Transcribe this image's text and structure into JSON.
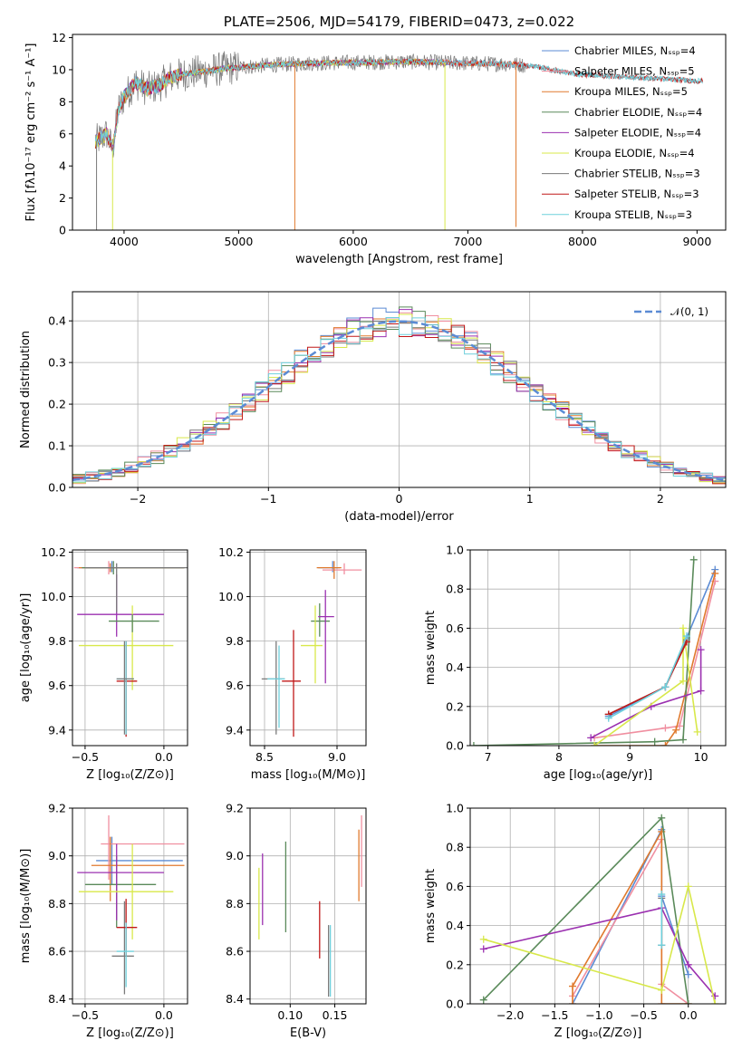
{
  "colors": {
    "Chabrier MILES": "#5b8bd4",
    "Salpeter MILES": "#f08fa0",
    "Kroupa MILES": "#e07a2e",
    "Chabrier ELODIE": "#5a8a5a",
    "Salpeter ELODIE": "#9b30b0",
    "Kroupa ELODIE": "#d8e84a",
    "Chabrier STELIB": "#7a7a7a",
    "Salpeter STELIB": "#c01818",
    "Kroupa STELIB": "#6fd0dc"
  },
  "chart_data": [
    {
      "id": "spectrum",
      "type": "line",
      "title": "PLATE=2506, MJD=54179, FIBERID=0473, z=0.022",
      "xlabel": "wavelength [Angstrom, rest frame]",
      "ylabel": "Flux [fλ10⁻¹⁷ erg cm⁻² s⁻¹ A⁻¹]",
      "xlim": [
        3550,
        9250
      ],
      "ylim": [
        0,
        12.2
      ],
      "xticks": [
        4000,
        5000,
        6000,
        7000,
        8000,
        9000
      ],
      "yticks": [
        0,
        2,
        4,
        6,
        8,
        10,
        12
      ],
      "grid": false,
      "legend_position": "top-right",
      "legend": [
        "Chabrier MILES, N_SSP=4",
        "Salpeter MILES, N_SSP=5",
        "Kroupa MILES, N_SSP=5",
        "Chabrier ELODIE, N_SSP=4",
        "Salpeter ELODIE, N_SSP=4",
        "Kroupa ELODIE, N_SSP=4",
        "Chabrier STELIB, N_SSP=3",
        "Salpeter STELIB, N_SSP=3",
        "Kroupa STELIB, N_SSP=3"
      ],
      "continuum": {
        "x": [
          3750,
          3850,
          3900,
          3950,
          4000,
          4100,
          4200,
          4300,
          4400,
          4500,
          4700,
          4900,
          5100,
          5300,
          5600,
          6000,
          6500,
          7000,
          7400,
          7600,
          7800,
          8000,
          8500,
          9000
        ],
        "y": [
          5.5,
          6.0,
          5.0,
          7.5,
          8.3,
          9.2,
          8.8,
          9.0,
          9.5,
          9.7,
          9.9,
          10.1,
          10.2,
          10.3,
          10.4,
          10.45,
          10.5,
          10.4,
          10.35,
          10.2,
          9.9,
          9.7,
          9.5,
          9.3
        ]
      },
      "spikes": [
        {
          "x": 5490,
          "y": 0,
          "series": "Kroupa MILES"
        },
        {
          "x": 6800,
          "y": 0,
          "series": "Kroupa ELODIE"
        },
        {
          "x": 7420,
          "y": 0.2,
          "series": "Kroupa MILES"
        },
        {
          "x": 3900,
          "y": 0,
          "series": "Kroupa ELODIE"
        },
        {
          "x": 3760,
          "y": 0,
          "series": "Chabrier STELIB"
        }
      ]
    },
    {
      "id": "residuals",
      "type": "line",
      "xlabel": "(data-model)/error",
      "ylabel": "Normed distribution",
      "xlim": [
        -2.5,
        2.5
      ],
      "ylim": [
        0,
        0.47
      ],
      "xticks": [
        -2,
        -1,
        0,
        1,
        2
      ],
      "xticklabels": [
        "−2",
        "−1",
        "0",
        "1",
        "2"
      ],
      "yticks": [
        0.0,
        0.1,
        0.2,
        0.3,
        0.4
      ],
      "yticklabels": [
        "0.0",
        "0.1",
        "0.2",
        "0.3",
        "0.4"
      ],
      "grid": true,
      "legend_position": "top-right",
      "legend": [
        "𝒩(0, 1)"
      ],
      "gaussian": {
        "mean": 0,
        "sigma": 1,
        "color": "#5b8bd4"
      },
      "bin_width": 0.1
    },
    {
      "id": "age-vs-Z",
      "type": "scatter",
      "xlabel": "Z [log₁₀(Z/Z⊙)]",
      "ylabel": "age  [log₁₀(age/yr)]",
      "xlim": [
        -0.58,
        0.15
      ],
      "ylim": [
        9.33,
        10.21
      ],
      "xticks": [
        -0.5,
        0.0
      ],
      "xticklabels": [
        "−0.5",
        "0.0"
      ],
      "yticks": [
        9.4,
        9.6,
        9.8,
        10.0,
        10.2
      ],
      "yticklabels": [
        "9.4",
        "9.6",
        "9.8",
        "10.0",
        "10.2"
      ],
      "grid": true,
      "points": [
        {
          "series": "Chabrier MILES",
          "x": -0.33,
          "y": 10.13,
          "xerr": [
            0.22,
            0.45
          ],
          "yerr": [
            0.02,
            0.03
          ]
        },
        {
          "series": "Salpeter MILES",
          "x": -0.35,
          "y": 10.13,
          "xerr": [
            0.22,
            0.48
          ],
          "yerr": [
            0.03,
            0.03
          ]
        },
        {
          "series": "Kroupa MILES",
          "x": -0.34,
          "y": 10.13,
          "xerr": [
            0.2,
            0.47
          ],
          "yerr": [
            0.02,
            0.02
          ]
        },
        {
          "series": "Chabrier ELODIE",
          "x": -0.32,
          "y": 10.13,
          "xerr": [
            0.2,
            0.45
          ],
          "yerr": [
            0.03,
            0.03
          ]
        },
        {
          "series": "Salpeter ELODIE",
          "x": -0.3,
          "y": 9.92,
          "xerr": [
            0.25,
            0.3
          ],
          "yerr": [
            0.1,
            0.18
          ]
        },
        {
          "series": "Kroupa ELODIE",
          "x": -0.2,
          "y": 9.78,
          "xerr": [
            0.34,
            0.26
          ],
          "yerr": [
            0.2,
            0.18
          ]
        },
        {
          "series": "Chabrier STELIB",
          "x": -0.3,
          "y": 10.13,
          "xerr": [
            0.2,
            0.45
          ],
          "yerr": [
            0.2,
            0.02
          ]
        },
        {
          "series": "Salpeter STELIB",
          "x": -0.24,
          "y": 9.62,
          "xerr": [
            0.06,
            0.07
          ],
          "yerr": [
            0.25,
            0.18
          ]
        },
        {
          "series": "Kroupa STELIB",
          "x": -0.24,
          "y": 9.63,
          "xerr": [
            0.06,
            0.05
          ],
          "yerr": [
            0.25,
            0.17
          ]
        },
        {
          "series": "Chabrier ELODIE",
          "x": -0.2,
          "y": 9.89,
          "xerr": [
            0.15,
            0.17
          ],
          "yerr": [
            0.05,
            0.03
          ]
        },
        {
          "series": "Chabrier STELIB",
          "x": -0.25,
          "y": 9.63,
          "xerr": [
            0.05,
            0.06
          ],
          "yerr": [
            0.25,
            0.17
          ]
        }
      ]
    },
    {
      "id": "age-vs-mass",
      "type": "scatter",
      "xlabel": "mass [log₁₀(M/M⊙)]",
      "ylabel": "",
      "xlim": [
        8.4,
        9.2
      ],
      "ylim": [
        9.33,
        10.21
      ],
      "xticks": [
        8.5,
        9.0
      ],
      "xticklabels": [
        "8.5",
        "9.0"
      ],
      "yticks": [
        9.4,
        9.6,
        9.8,
        10.0,
        10.2
      ],
      "yticklabels": [
        "9.4",
        "9.6",
        "9.8",
        "10.0",
        "10.2"
      ],
      "grid": true,
      "points": [
        {
          "series": "Chabrier MILES",
          "x": 8.97,
          "y": 10.13,
          "xerr": [
            0.1,
            0.05
          ],
          "yerr": [
            0.02,
            0.03
          ]
        },
        {
          "series": "Salpeter MILES",
          "x": 9.05,
          "y": 10.12,
          "xerr": [
            0.15,
            0.12
          ],
          "yerr": [
            0.02,
            0.03
          ]
        },
        {
          "series": "Kroupa MILES",
          "x": 8.98,
          "y": 10.13,
          "xerr": [
            0.12,
            0.05
          ],
          "yerr": [
            0.05,
            0.03
          ]
        },
        {
          "series": "Chabrier ELODIE",
          "x": 8.88,
          "y": 9.89,
          "xerr": [
            0.06,
            0.07
          ],
          "yerr": [
            0.07,
            0.08
          ]
        },
        {
          "series": "Salpeter ELODIE",
          "x": 8.92,
          "y": 9.91,
          "xerr": [
            0.05,
            0.06
          ],
          "yerr": [
            0.3,
            0.12
          ]
        },
        {
          "series": "Kroupa ELODIE",
          "x": 8.85,
          "y": 9.78,
          "xerr": [
            0.1,
            0.05
          ],
          "yerr": [
            0.17,
            0.18
          ]
        },
        {
          "series": "Chabrier STELIB",
          "x": 8.58,
          "y": 9.63,
          "xerr": [
            0.1,
            0.06
          ],
          "yerr": [
            0.25,
            0.17
          ]
        },
        {
          "series": "Salpeter STELIB",
          "x": 8.7,
          "y": 9.62,
          "xerr": [
            0.08,
            0.05
          ],
          "yerr": [
            0.25,
            0.23
          ]
        },
        {
          "series": "Kroupa STELIB",
          "x": 8.6,
          "y": 9.63,
          "xerr": [
            0.08,
            0.04
          ],
          "yerr": [
            0.22,
            0.15
          ]
        }
      ]
    },
    {
      "id": "weight-vs-age",
      "type": "line",
      "xlabel": "age  [log₁₀(age/yr)]",
      "ylabel": "mass weight",
      "xlim": [
        6.75,
        10.35
      ],
      "ylim": [
        0,
        1.0
      ],
      "xticks": [
        7,
        8,
        9,
        10
      ],
      "xticklabels": [
        "7",
        "8",
        "9",
        "10"
      ],
      "yticks": [
        0.0,
        0.2,
        0.4,
        0.6,
        0.8,
        1.0
      ],
      "yticklabels": [
        "0.0",
        "0.2",
        "0.4",
        "0.6",
        "0.8",
        "1.0"
      ],
      "grid": true,
      "series": [
        {
          "name": "Chabrier MILES",
          "x": [
            8.7,
            9.5,
            9.8,
            10.2
          ],
          "y": [
            0.15,
            0.3,
            0.55,
            0.9
          ]
        },
        {
          "name": "Salpeter MILES",
          "x": [
            8.5,
            9.5,
            9.7,
            10.2
          ],
          "y": [
            0.04,
            0.09,
            0.1,
            0.84
          ]
        },
        {
          "name": "Kroupa MILES",
          "x": [
            8.5,
            9.5,
            9.65,
            10.2
          ],
          "y": [
            0.0,
            0.0,
            0.08,
            0.88
          ]
        },
        {
          "name": "Chabrier ELODIE",
          "x": [
            6.8,
            9.35,
            9.75,
            9.9
          ],
          "y": [
            0.0,
            0.02,
            0.03,
            0.95
          ]
        },
        {
          "name": "Salpeter ELODIE",
          "x": [
            8.45,
            9.3,
            10.0,
            10.0
          ],
          "y": [
            0.04,
            0.2,
            0.28,
            0.49
          ]
        },
        {
          "name": "Kroupa ELODIE",
          "x": [
            8.5,
            9.75,
            9.75,
            9.95
          ],
          "y": [
            0.0,
            0.33,
            0.6,
            0.07
          ]
        },
        {
          "name": "Chabrier STELIB",
          "x": [
            8.7,
            9.5,
            9.8
          ],
          "y": [
            0.16,
            0.3,
            0.54
          ]
        },
        {
          "name": "Salpeter STELIB",
          "x": [
            8.7,
            9.5,
            9.8
          ],
          "y": [
            0.16,
            0.3,
            0.53
          ]
        },
        {
          "name": "Kroupa STELIB",
          "x": [
            8.7,
            9.5,
            9.8
          ],
          "y": [
            0.14,
            0.3,
            0.56
          ]
        }
      ]
    },
    {
      "id": "mass-vs-Z",
      "type": "scatter",
      "xlabel": "Z [log₁₀(Z/Z⊙)]",
      "ylabel": "mass [log₁₀(M/M⊙)]",
      "xlim": [
        -0.58,
        0.15
      ],
      "ylim": [
        8.38,
        9.2
      ],
      "xticks": [
        -0.5,
        0.0
      ],
      "xticklabels": [
        "−0.5",
        "0.0"
      ],
      "yticks": [
        8.4,
        8.6,
        8.8,
        9.0,
        9.2
      ],
      "yticklabels": [
        "8.4",
        "8.6",
        "8.8",
        "9.0",
        "9.2"
      ],
      "grid": true,
      "points": [
        {
          "series": "Chabrier MILES",
          "x": -0.33,
          "y": 8.98,
          "xerr": [
            0.1,
            0.45
          ],
          "yerr": [
            0.1,
            0.1
          ]
        },
        {
          "series": "Salpeter MILES",
          "x": -0.35,
          "y": 9.05,
          "xerr": [
            0.05,
            0.48
          ],
          "yerr": [
            0.15,
            0.12
          ]
        },
        {
          "series": "Kroupa MILES",
          "x": -0.34,
          "y": 8.96,
          "xerr": [
            0.12,
            0.47
          ],
          "yerr": [
            0.15,
            0.12
          ]
        },
        {
          "series": "Chabrier ELODIE",
          "x": -0.3,
          "y": 8.88,
          "xerr": [
            0.2,
            0.25
          ],
          "yerr": [
            0.18,
            0.12
          ]
        },
        {
          "series": "Salpeter ELODIE",
          "x": -0.3,
          "y": 8.93,
          "xerr": [
            0.25,
            0.3
          ],
          "yerr": [
            0.2,
            0.12
          ]
        },
        {
          "series": "Kroupa ELODIE",
          "x": -0.2,
          "y": 8.85,
          "xerr": [
            0.34,
            0.26
          ],
          "yerr": [
            0.2,
            0.2
          ]
        },
        {
          "series": "Chabrier STELIB",
          "x": -0.25,
          "y": 8.58,
          "xerr": [
            0.08,
            0.06
          ],
          "yerr": [
            0.16,
            0.23
          ]
        },
        {
          "series": "Salpeter STELIB",
          "x": -0.24,
          "y": 8.7,
          "xerr": [
            0.06,
            0.07
          ],
          "yerr": [
            0.12,
            0.12
          ]
        },
        {
          "series": "Kroupa STELIB",
          "x": -0.24,
          "y": 8.6,
          "xerr": [
            0.06,
            0.05
          ],
          "yerr": [
            0.15,
            0.12
          ]
        }
      ]
    },
    {
      "id": "mass-vs-ebv",
      "type": "scatter",
      "xlabel": "E(B-V)",
      "ylabel": "",
      "xlim": [
        0.055,
        0.185
      ],
      "ylim": [
        8.38,
        9.2
      ],
      "xticks": [
        0.1,
        0.15
      ],
      "xticklabels": [
        "0.10",
        "0.15"
      ],
      "yticks": [
        8.4,
        8.6,
        8.8,
        9.0,
        9.2
      ],
      "yticklabels": [
        "8.4",
        "8.6",
        "8.8",
        "9.0",
        "9.2"
      ],
      "grid": true,
      "points": [
        {
          "series": "Kroupa ELODIE",
          "x": 0.065,
          "y": 8.8,
          "xerr": [
            0,
            0
          ],
          "yerr": [
            0.15,
            0.15
          ]
        },
        {
          "series": "Salpeter ELODIE",
          "x": 0.069,
          "y": 8.86,
          "xerr": [
            0,
            0
          ],
          "yerr": [
            0.15,
            0.15
          ]
        },
        {
          "series": "Chabrier ELODIE",
          "x": 0.095,
          "y": 8.87,
          "xerr": [
            0,
            0
          ],
          "yerr": [
            0.19,
            0.19
          ]
        },
        {
          "series": "Salpeter STELIB",
          "x": 0.133,
          "y": 8.69,
          "xerr": [
            0,
            0
          ],
          "yerr": [
            0.12,
            0.12
          ]
        },
        {
          "series": "Chabrier STELIB",
          "x": 0.143,
          "y": 8.56,
          "xerr": [
            0,
            0
          ],
          "yerr": [
            0.15,
            0.15
          ]
        },
        {
          "series": "Kroupa STELIB",
          "x": 0.145,
          "y": 8.56,
          "xerr": [
            0,
            0
          ],
          "yerr": [
            0.15,
            0.15
          ]
        },
        {
          "series": "Kroupa MILES",
          "x": 0.177,
          "y": 8.96,
          "xerr": [
            0,
            0
          ],
          "yerr": [
            0.15,
            0.15
          ]
        },
        {
          "series": "Salpeter MILES",
          "x": 0.18,
          "y": 9.02,
          "xerr": [
            0,
            0
          ],
          "yerr": [
            0.15,
            0.15
          ]
        }
      ]
    },
    {
      "id": "weight-vs-Z",
      "type": "line",
      "xlabel": "Z [log₁₀(Z/Z⊙)]",
      "ylabel": "mass weight",
      "xlim": [
        -2.45,
        0.42
      ],
      "ylim": [
        0,
        1.0
      ],
      "xticks": [
        -2.0,
        -1.5,
        -1.0,
        -0.5,
        0.0
      ],
      "xticklabels": [
        "−2.0",
        "−1.5",
        "−1.0",
        "−0.5",
        "0.0"
      ],
      "yticks": [
        0.0,
        0.2,
        0.4,
        0.6,
        0.8,
        1.0
      ],
      "yticklabels": [
        "0.0",
        "0.2",
        "0.4",
        "0.6",
        "0.8",
        "1.0"
      ],
      "grid": true,
      "series": [
        {
          "name": "Chabrier MILES",
          "x": [
            -1.3,
            -0.3,
            -0.3,
            0.0
          ],
          "y": [
            0.0,
            0.89,
            0.55,
            0.15
          ]
        },
        {
          "name": "Salpeter MILES",
          "x": [
            -1.3,
            -0.3,
            -0.3,
            0.0
          ],
          "y": [
            0.04,
            0.84,
            0.1,
            0.0
          ]
        },
        {
          "name": "Kroupa MILES",
          "x": [
            -1.3,
            -1.3,
            -0.3,
            -0.3,
            0.0
          ],
          "y": [
            0.0,
            0.09,
            0.88,
            0.0,
            0.0
          ]
        },
        {
          "name": "Chabrier ELODIE",
          "x": [
            -2.3,
            -0.3,
            0.0
          ],
          "y": [
            0.02,
            0.95,
            0.0
          ]
        },
        {
          "name": "Salpeter ELODIE",
          "x": [
            -2.3,
            -0.3,
            0.0,
            0.3
          ],
          "y": [
            0.28,
            0.49,
            0.2,
            0.04
          ]
        },
        {
          "name": "Kroupa ELODIE",
          "x": [
            -2.3,
            -0.3,
            0.0,
            0.3
          ],
          "y": [
            0.33,
            0.07,
            0.6,
            0.0
          ]
        },
        {
          "name": "Chabrier STELIB",
          "x": [
            -0.3,
            -0.3
          ],
          "y": [
            0.54,
            0.3
          ]
        },
        {
          "name": "Kroupa STELIB",
          "x": [
            -0.3,
            -0.3
          ],
          "y": [
            0.56,
            0.3
          ]
        }
      ]
    }
  ]
}
